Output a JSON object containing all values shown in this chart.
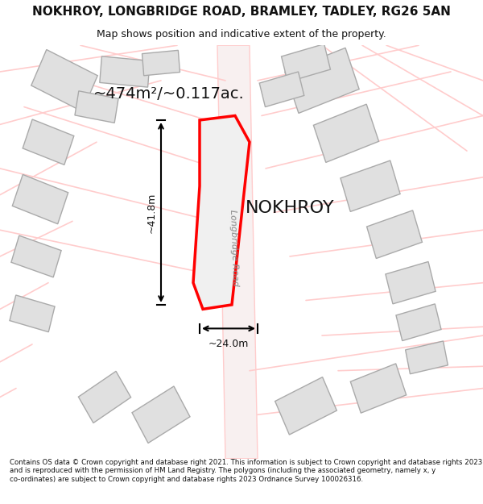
{
  "title_line1": "NOKHROY, LONGBRIDGE ROAD, BRAMLEY, TADLEY, RG26 5AN",
  "title_line2": "Map shows position and indicative extent of the property.",
  "footer_text": "Contains OS data © Crown copyright and database right 2021. This information is subject to Crown copyright and database rights 2023 and is reproduced with the permission of HM Land Registry. The polygons (including the associated geometry, namely x, y co-ordinates) are subject to Crown copyright and database rights 2023 Ordnance Survey 100026316.",
  "area_label": "~474m²/~0.117ac.",
  "property_label": "NOKHROY",
  "dim_vertical": "~41.8m",
  "dim_horizontal": "~24.0m",
  "road_label": "Longbridge Road",
  "background_color": "#ffffff",
  "map_bg_color": "#f5f5f5",
  "property_fill": "#e8e8e8",
  "property_edge": "#ff0000",
  "road_color_light": "#ffcccc",
  "building_fill": "#e0e0e0",
  "building_edge": "#cccccc"
}
